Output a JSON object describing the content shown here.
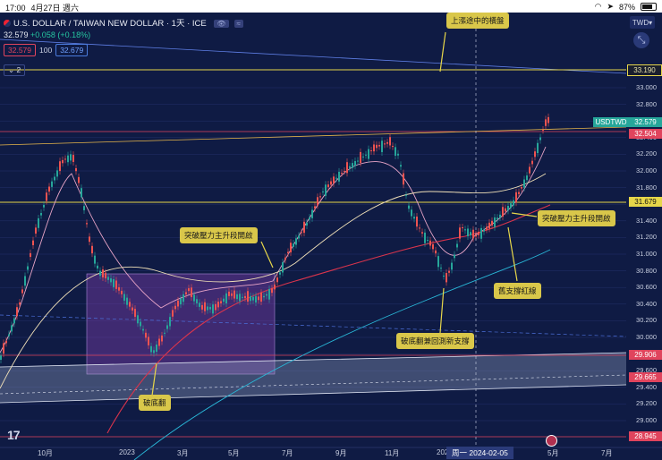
{
  "status": {
    "time": "17:00",
    "date": "4月27日 週六",
    "battery": "87%"
  },
  "header": {
    "symbol": "U.S. DOLLAR / TAIWAN NEW DOLLAR · 1天 · ICE",
    "currency": "TWD"
  },
  "quote": {
    "price": "32.579",
    "change": "+0.058 (+0.18%)",
    "bid": "32.579",
    "spread_size": "100",
    "ask": "32.679",
    "collapse": "2"
  },
  "price_tags": {
    "ticker": "USDTWD",
    "current": "32.579",
    "red1": "32.504",
    "res1": "33.190",
    "res2": "31.679",
    "sup1": "29.906",
    "sup2": "29.665",
    "low": "28.945"
  },
  "y_axis": [
    "33.000",
    "32.800",
    "32.600",
    "32.400",
    "32.200",
    "32.000",
    "31.800",
    "31.600",
    "31.400",
    "31.200",
    "31.000",
    "30.800",
    "30.600",
    "30.400",
    "30.200",
    "30.000",
    "29.800",
    "29.600",
    "29.400",
    "29.200",
    "29.000"
  ],
  "x_axis": [
    "10月",
    "2023",
    "3月",
    "5月",
    "7月",
    "9月",
    "11月",
    "2024",
    "5月",
    "7月"
  ],
  "crosshair_date": "周一 2024-02-05",
  "annotations": {
    "top": "上漲途中的橫盤",
    "breakout1": "突破壓力主升段開啟",
    "breakout2": "突破壓力主升段開啟",
    "bottom": "破底翻",
    "retest": "破底翻兼回測新支撐",
    "old_support": "舊支撐紅線"
  },
  "colors": {
    "bg": "#0f1b44",
    "up": "#26a69a",
    "down": "#ef5350",
    "yellow": "#e6d64a",
    "accent_red": "#e0445d"
  }
}
